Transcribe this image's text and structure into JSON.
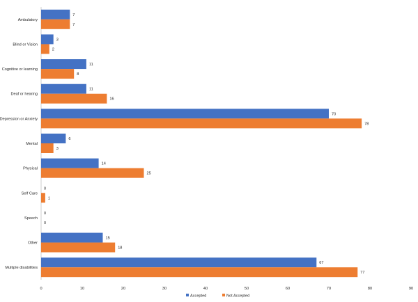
{
  "chart_data": {
    "type": "bar",
    "orientation": "horizontal",
    "categories": [
      "Ambulatory",
      "Blind or Vision",
      "Cognitive or learning",
      "Deaf or hearing",
      "Depression or Anxiety",
      "Mental",
      "Physical",
      "Self Care",
      "Speech",
      "Other",
      "Multiple disabilities"
    ],
    "series": [
      {
        "name": "Accepted",
        "color": "#4472C4",
        "values": [
          7,
          3,
          11,
          11,
          70,
          6,
          14,
          0,
          0,
          15,
          67
        ]
      },
      {
        "name": "Not Accepted",
        "color": "#ED7D31",
        "values": [
          7,
          2,
          8,
          16,
          78,
          3,
          25,
          1,
          0,
          18,
          77
        ]
      }
    ],
    "xlim": [
      0,
      90
    ],
    "xticks": [
      0,
      10,
      20,
      30,
      40,
      50,
      60,
      70,
      80,
      90
    ],
    "data_labels": true,
    "grid": false,
    "legend": "bottom"
  }
}
